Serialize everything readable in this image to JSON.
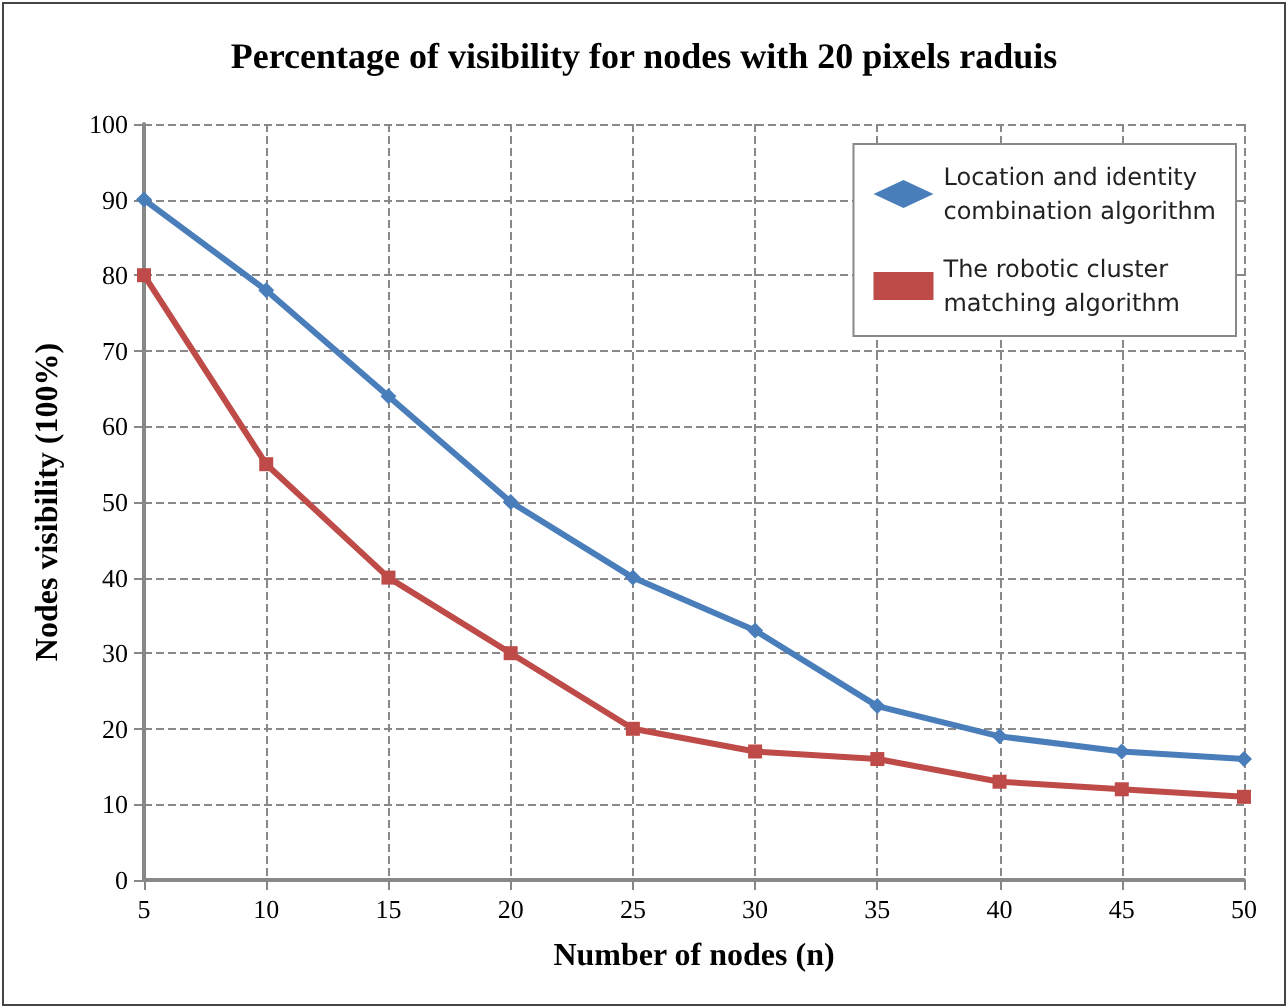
{
  "chart_data": {
    "type": "line",
    "title": "Percentage of visibility for nodes with 20 pixels raduis",
    "xlabel": "Number of nodes (n)",
    "ylabel": "Nodes visibility (100%)",
    "x": [
      5,
      10,
      15,
      20,
      25,
      30,
      35,
      40,
      45,
      50
    ],
    "series": [
      {
        "name": "Location and identity combination algorithm",
        "color": "#4a7ebb",
        "marker": "diamond",
        "values": [
          90,
          78,
          64,
          50,
          40,
          33,
          23,
          19,
          17,
          16
        ]
      },
      {
        "name": "The robotic cluster matching algorithm",
        "color": "#be4b48",
        "marker": "square",
        "values": [
          80,
          55,
          40,
          30,
          20,
          17,
          16,
          13,
          12,
          11
        ]
      }
    ],
    "xlim": [
      5,
      50
    ],
    "xticks": [
      5,
      10,
      15,
      20,
      25,
      30,
      35,
      40,
      45,
      50
    ],
    "ylim": [
      0,
      100
    ],
    "yticks": [
      0,
      10,
      20,
      30,
      40,
      50,
      60,
      70,
      80,
      90,
      100
    ],
    "grid": true,
    "legend": "top right",
    "line_style": "solid"
  }
}
